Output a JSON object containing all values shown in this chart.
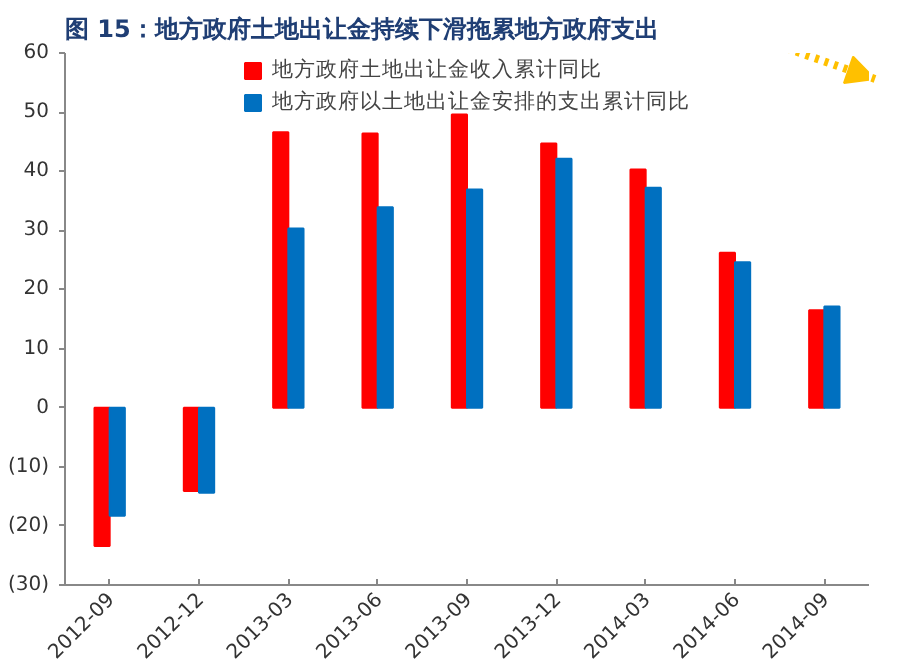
{
  "chart_data": {
    "type": "bar",
    "title": "图 15：地方政府土地出让金持续下滑拖累地方政府支出",
    "categories": [
      "2012-09",
      "2012-12",
      "2013-03",
      "2013-06",
      "2013-09",
      "2013-12",
      "2014-03",
      "2014-06",
      "2014-09"
    ],
    "series": [
      {
        "name": "地方政府土地出让金收入累计同比",
        "color": "#ff0000",
        "values": [
          -23.4,
          -14.1,
          46.6,
          46.4,
          49.6,
          44.7,
          40.3,
          26.2,
          16.5
        ]
      },
      {
        "name": "地方政府以土地出让金安排的支出累计同比",
        "color": "#0070c0",
        "values": [
          -18.3,
          -14.4,
          30.3,
          33.9,
          36.9,
          42.1,
          37.2,
          24.6,
          17.1
        ]
      }
    ],
    "ylim": [
      -30,
      60
    ],
    "yticks": [
      {
        "value": -30,
        "label": "(30)"
      },
      {
        "value": -20,
        "label": "(20)"
      },
      {
        "value": -10,
        "label": "(10)"
      },
      0,
      10,
      20,
      30,
      40,
      50,
      60
    ],
    "grid": false,
    "legend": "top"
  }
}
